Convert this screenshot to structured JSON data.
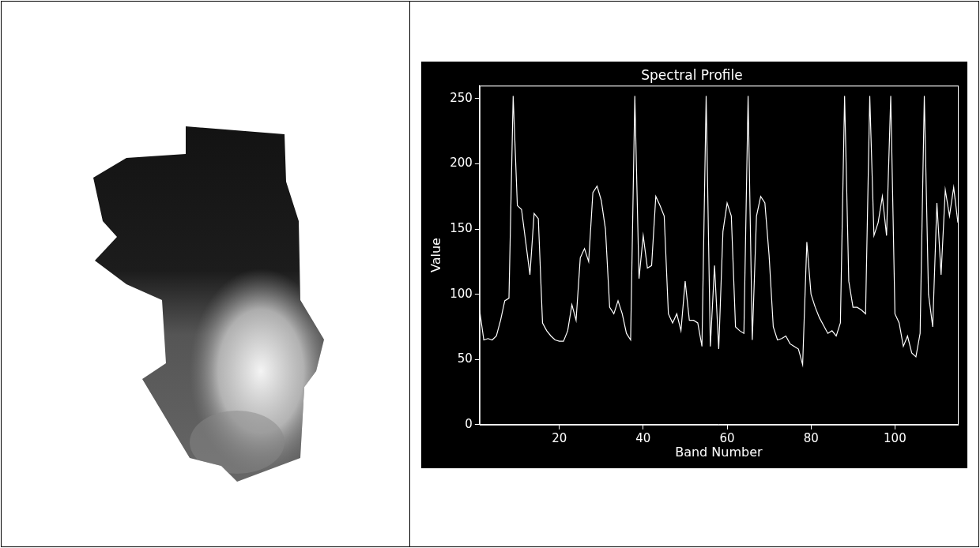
{
  "chart_data": {
    "type": "line",
    "title": "Spectral Profile",
    "x_label": "Band Number",
    "y_label": "Value",
    "x": [
      1,
      2,
      3,
      4,
      5,
      6,
      7,
      8,
      9,
      10,
      11,
      12,
      13,
      14,
      15,
      16,
      17,
      18,
      19,
      20,
      21,
      22,
      23,
      24,
      25,
      26,
      27,
      28,
      29,
      30,
      31,
      32,
      33,
      34,
      35,
      36,
      37,
      38,
      39,
      40,
      41,
      42,
      43,
      44,
      45,
      46,
      47,
      48,
      49,
      50,
      51,
      52,
      53,
      54,
      55,
      56,
      57,
      58,
      59,
      60,
      61,
      62,
      63,
      64,
      65,
      66,
      67,
      68,
      69,
      70,
      71,
      72,
      73,
      74,
      75,
      76,
      77,
      78,
      79,
      80,
      81,
      82,
      83,
      84,
      85,
      86,
      87,
      88,
      89,
      90,
      91,
      92,
      93,
      94,
      95,
      96,
      97,
      98,
      99,
      100,
      101,
      102,
      103,
      104,
      105,
      106,
      107,
      108,
      109,
      110,
      111,
      112,
      113,
      114,
      115
    ],
    "values": [
      88,
      65,
      66,
      65,
      68,
      80,
      95,
      97,
      252,
      168,
      165,
      140,
      115,
      162,
      158,
      78,
      72,
      68,
      65,
      64,
      64,
      72,
      92,
      80,
      128,
      135,
      125,
      178,
      183,
      172,
      150,
      90,
      85,
      95,
      85,
      70,
      65,
      252,
      112,
      145,
      120,
      122,
      175,
      168,
      160,
      85,
      78,
      85,
      72,
      110,
      80,
      80,
      78,
      60,
      252,
      60,
      122,
      58,
      148,
      170,
      160,
      75,
      72,
      70,
      252,
      65,
      160,
      175,
      170,
      130,
      75,
      65,
      66,
      68,
      62,
      60,
      58,
      46,
      140,
      100,
      90,
      82,
      76,
      70,
      72,
      68,
      78,
      252,
      110,
      90,
      90,
      88,
      85,
      252,
      145,
      155,
      175,
      145,
      252,
      85,
      78,
      60,
      68,
      55,
      52,
      70,
      252,
      100,
      75,
      170,
      115,
      180,
      160,
      182,
      155
    ],
    "color": "#ffffff",
    "xlim": [
      1,
      115
    ],
    "xticks": [
      20,
      40,
      60,
      80,
      100
    ],
    "ylim": [
      0,
      260
    ],
    "yticks": [
      0,
      50,
      100,
      150,
      200,
      250
    ],
    "grid": false
  }
}
